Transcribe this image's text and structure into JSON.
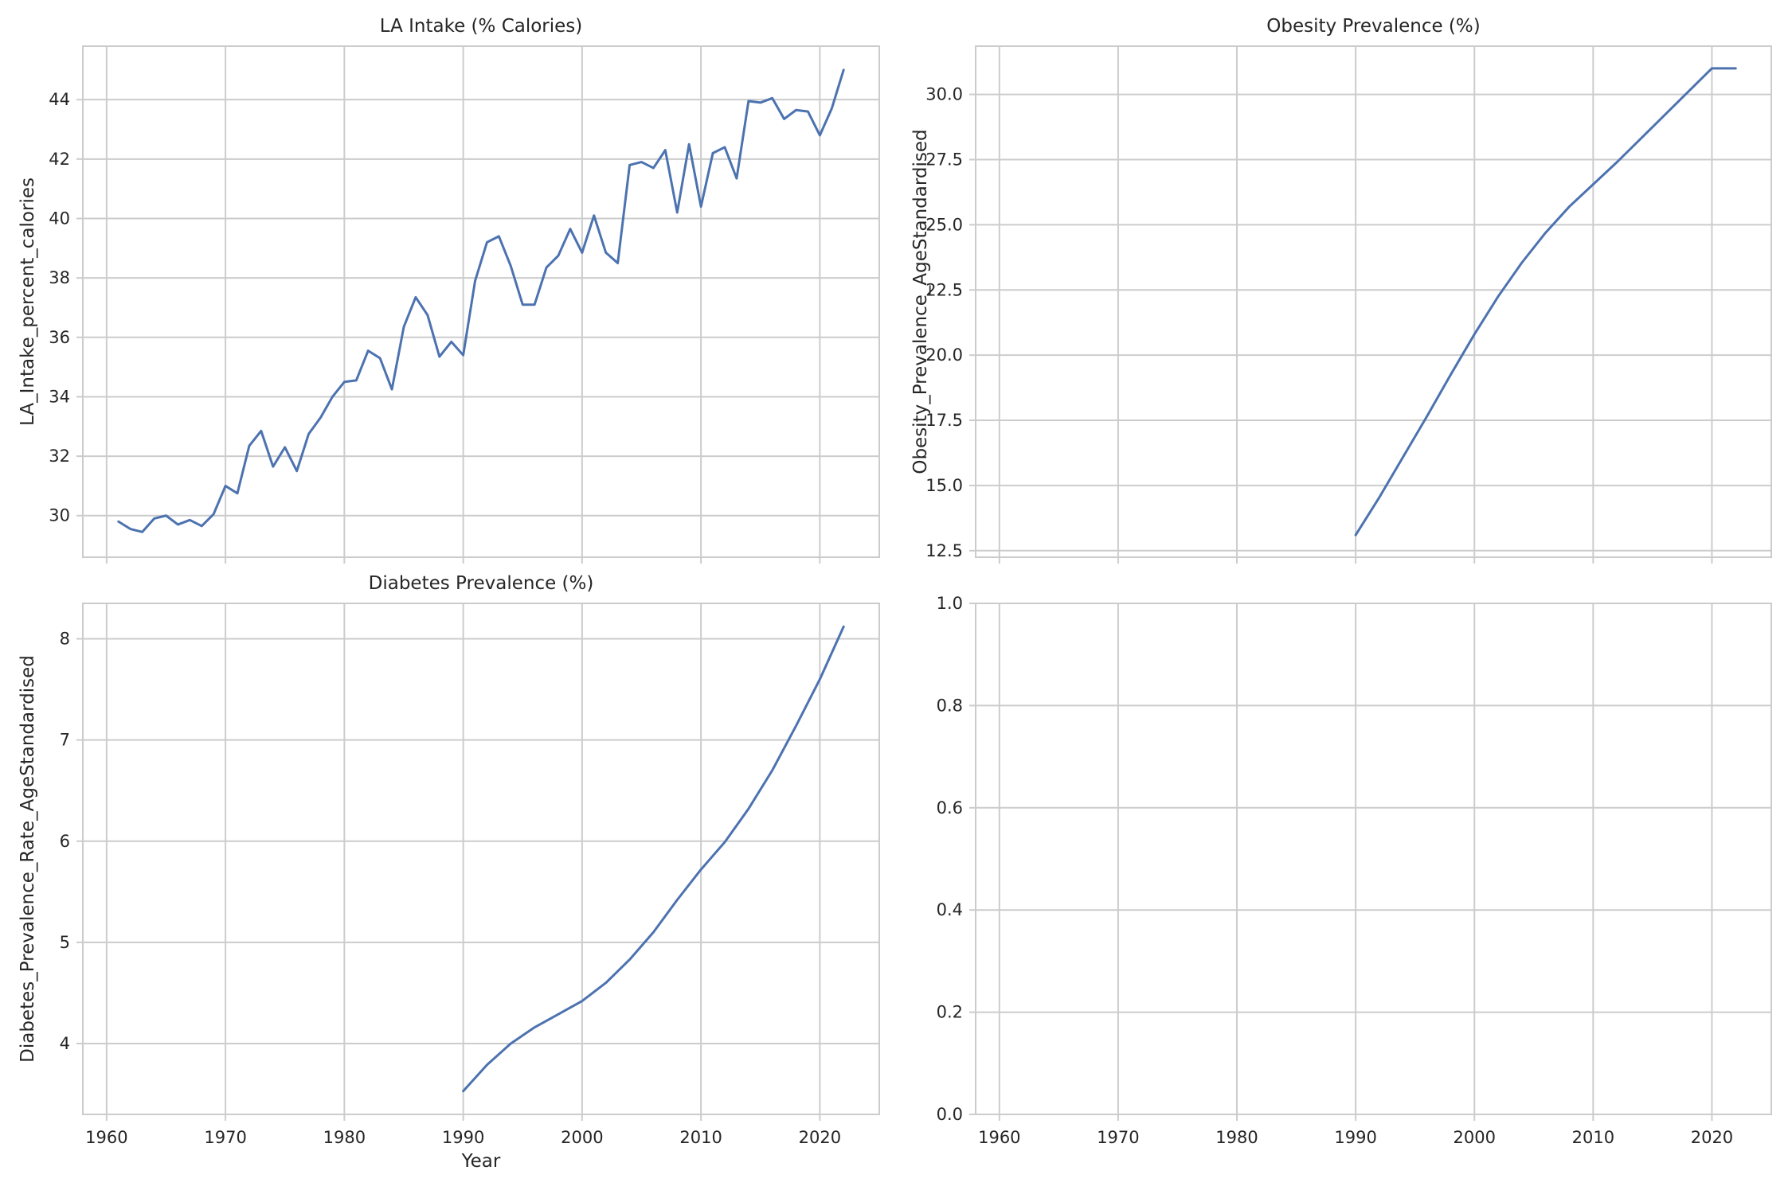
{
  "chart_data": [
    {
      "type": "line",
      "title": "LA Intake (% Calories)",
      "xlabel": "",
      "ylabel": "LA_Intake_percent_calories",
      "xlim": [
        1958,
        2025
      ],
      "ylim": [
        28.6,
        45.8
      ],
      "xticks": [
        1960,
        1970,
        1980,
        1990,
        2000,
        2010,
        2020
      ],
      "yticks": [
        30,
        32,
        34,
        36,
        38,
        40,
        42,
        44
      ],
      "show_xticklabels": false,
      "grid": true,
      "color": "#4c72b0",
      "series": [
        {
          "x": [
            1961,
            1962,
            1963,
            1964,
            1965,
            1966,
            1967,
            1968,
            1969,
            1970,
            1971,
            1972,
            1973,
            1974,
            1975,
            1976,
            1977,
            1978,
            1979,
            1980,
            1981,
            1982,
            1983,
            1984,
            1985,
            1986,
            1987,
            1988,
            1989,
            1990,
            1991,
            1992,
            1993,
            1994,
            1995,
            1996,
            1997,
            1998,
            1999,
            2000,
            2001,
            2002,
            2003,
            2004,
            2005,
            2006,
            2007,
            2008,
            2009,
            2010,
            2011,
            2012,
            2013,
            2014,
            2015,
            2016,
            2017,
            2018,
            2019,
            2020,
            2021,
            2022
          ],
          "values": [
            29.8,
            29.55,
            29.45,
            29.9,
            30.0,
            29.7,
            29.85,
            29.65,
            30.05,
            31.0,
            30.75,
            32.35,
            32.85,
            31.65,
            32.3,
            31.5,
            32.75,
            33.3,
            34.0,
            34.5,
            34.55,
            35.55,
            35.3,
            34.25,
            36.35,
            37.35,
            36.75,
            35.35,
            35.85,
            35.4,
            37.9,
            39.2,
            39.4,
            38.4,
            37.1,
            37.1,
            38.35,
            38.75,
            39.65,
            38.85,
            40.1,
            38.85,
            38.5,
            41.8,
            41.9,
            41.7,
            42.3,
            40.2,
            42.5,
            40.4,
            42.2,
            42.4,
            41.35,
            43.95,
            43.9,
            44.05,
            43.35,
            43.65,
            43.6,
            42.8,
            43.7,
            45.0
          ]
        }
      ]
    },
    {
      "type": "line",
      "title": "Obesity Prevalence (%)",
      "xlabel": "",
      "ylabel": "Obesity_Prevalence_AgeStandardised",
      "xlim": [
        1958,
        2025
      ],
      "ylim": [
        12.25,
        31.85
      ],
      "xticks": [
        1960,
        1970,
        1980,
        1990,
        2000,
        2010,
        2020
      ],
      "yticks": [
        "12.5",
        "15.0",
        "17.5",
        "20.0",
        "22.5",
        "25.0",
        "27.5",
        "30.0"
      ],
      "show_xticklabels": false,
      "grid": true,
      "color": "#4c72b0",
      "series": [
        {
          "x": [
            1990,
            1992,
            1994,
            1996,
            1998,
            2000,
            2002,
            2004,
            2006,
            2008,
            2010,
            2012,
            2014,
            2016,
            2018,
            2020,
            2022
          ],
          "values": [
            13.1,
            14.55,
            16.1,
            17.65,
            19.25,
            20.8,
            22.25,
            23.55,
            24.7,
            25.7,
            26.55,
            27.4,
            28.3,
            29.2,
            30.1,
            31.0,
            31.0
          ]
        }
      ]
    },
    {
      "type": "line",
      "title": "Diabetes Prevalence (%)",
      "xlabel": "Year",
      "ylabel": "Diabetes_Prevalence_Rate_AgeStandardised",
      "xlim": [
        1958,
        2025
      ],
      "ylim": [
        3.3,
        8.35
      ],
      "xticks": [
        1960,
        1970,
        1980,
        1990,
        2000,
        2010,
        2020
      ],
      "yticks": [
        4,
        5,
        6,
        7,
        8
      ],
      "show_xticklabels": true,
      "grid": true,
      "color": "#4c72b0",
      "series": [
        {
          "x": [
            1990,
            1992,
            1994,
            1996,
            1998,
            2000,
            2002,
            2004,
            2006,
            2008,
            2010,
            2012,
            2014,
            2016,
            2018,
            2020,
            2022
          ],
          "values": [
            3.53,
            3.79,
            4.0,
            4.16,
            4.29,
            4.42,
            4.6,
            4.83,
            5.1,
            5.42,
            5.72,
            5.99,
            6.32,
            6.7,
            7.14,
            7.6,
            8.12
          ]
        }
      ]
    },
    {
      "type": "line",
      "title": "",
      "xlabel": "",
      "ylabel": "",
      "xlim": [
        1958,
        2025
      ],
      "ylim": [
        0,
        1
      ],
      "xticks": [
        1960,
        1970,
        1980,
        1990,
        2000,
        2010,
        2020
      ],
      "yticks": [
        "0.0",
        "0.2",
        "0.4",
        "0.6",
        "0.8",
        "1.0"
      ],
      "show_xticklabels": true,
      "grid": true,
      "color": "#4c72b0",
      "series": []
    }
  ]
}
